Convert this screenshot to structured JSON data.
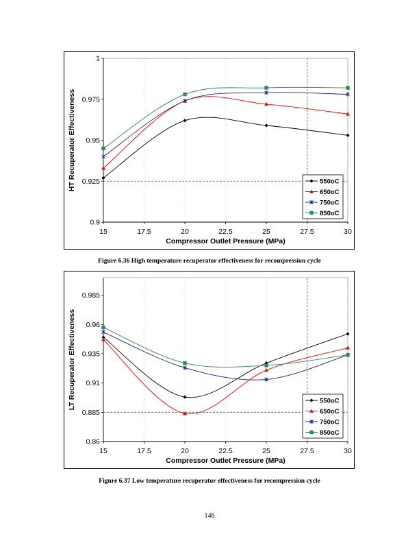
{
  "chart_data": [
    {
      "type": "line",
      "xlabel": "Compressor Outlet Pressure (MPa)",
      "ylabel": "HT Recuperator Effectiveness",
      "xlim": [
        15,
        30
      ],
      "ylim": [
        0.9,
        1.0
      ],
      "xticks": [
        "15",
        "17.5",
        "20",
        "22.5",
        "25",
        "27.5",
        "30"
      ],
      "xtick_values": [
        15,
        17.5,
        20,
        22.5,
        25,
        27.5,
        30
      ],
      "yticks": [
        "0.9",
        "0.925",
        "0.95",
        "0.975",
        "1"
      ],
      "ytick_values": [
        0.9,
        0.925,
        0.95,
        0.975,
        1.0
      ],
      "grid": "vertical dotted",
      "reference_lines": {
        "y": 0.925,
        "x": 27.5
      },
      "legend_position": "bottom-right",
      "x": [
        15,
        20,
        25,
        30
      ],
      "series": [
        {
          "name": "550oC",
          "color": "#000000",
          "marker": "diamond",
          "values": [
            0.927,
            0.962,
            0.959,
            0.953
          ]
        },
        {
          "name": "650oC",
          "color": "#ff0000",
          "marker": "triangle",
          "values": [
            0.933,
            0.974,
            0.972,
            0.966
          ]
        },
        {
          "name": "750oC",
          "color": "#1f1f8f",
          "marker": "asterisk",
          "values": [
            0.94,
            0.974,
            0.979,
            0.978
          ]
        },
        {
          "name": "850oC",
          "color": "#2e8b57",
          "marker": "square",
          "values": [
            0.945,
            0.978,
            0.982,
            0.982
          ]
        }
      ]
    },
    {
      "type": "line",
      "xlabel": "Compressor Outlet Pressure (MPa)",
      "ylabel": "LT Recuperator Effectiveness",
      "xlim": [
        15,
        30
      ],
      "ylim": [
        0.86,
        1.0
      ],
      "xticks": [
        "15",
        "17.5",
        "20",
        "22.5",
        "25",
        "27.5",
        "30"
      ],
      "xtick_values": [
        15,
        17.5,
        20,
        22.5,
        25,
        27.5,
        30
      ],
      "yticks": [
        "0.86",
        "0.885",
        "0.91",
        "0.935",
        "0.96",
        "0.985"
      ],
      "ytick_values": [
        0.86,
        0.885,
        0.91,
        0.935,
        0.96,
        0.985
      ],
      "grid": "vertical dotted",
      "reference_lines": {
        "y": 0.885,
        "x": 27.5
      },
      "legend_position": "bottom-right",
      "x": [
        15,
        20,
        25,
        30
      ],
      "series": [
        {
          "name": "550oC",
          "color": "#000000",
          "marker": "diamond",
          "values": [
            0.949,
            0.898,
            0.927,
            0.952
          ]
        },
        {
          "name": "650oC",
          "color": "#ff0000",
          "marker": "triangle",
          "values": [
            0.947,
            0.884,
            0.921,
            0.94
          ]
        },
        {
          "name": "750oC",
          "color": "#1f1f8f",
          "marker": "asterisk",
          "values": [
            0.9535,
            0.923,
            0.913,
            0.934
          ]
        },
        {
          "name": "850oC",
          "color": "#2e8b57",
          "marker": "square",
          "values": [
            0.9575,
            0.927,
            0.925,
            0.934
          ]
        }
      ]
    }
  ],
  "captions": [
    "Figure 6.36 High temperature recuperator effectiveness for recompression cycle",
    "Figure 6.37 Low temperature recuperator effectiveness for recompression cycle"
  ],
  "page_number": "146"
}
